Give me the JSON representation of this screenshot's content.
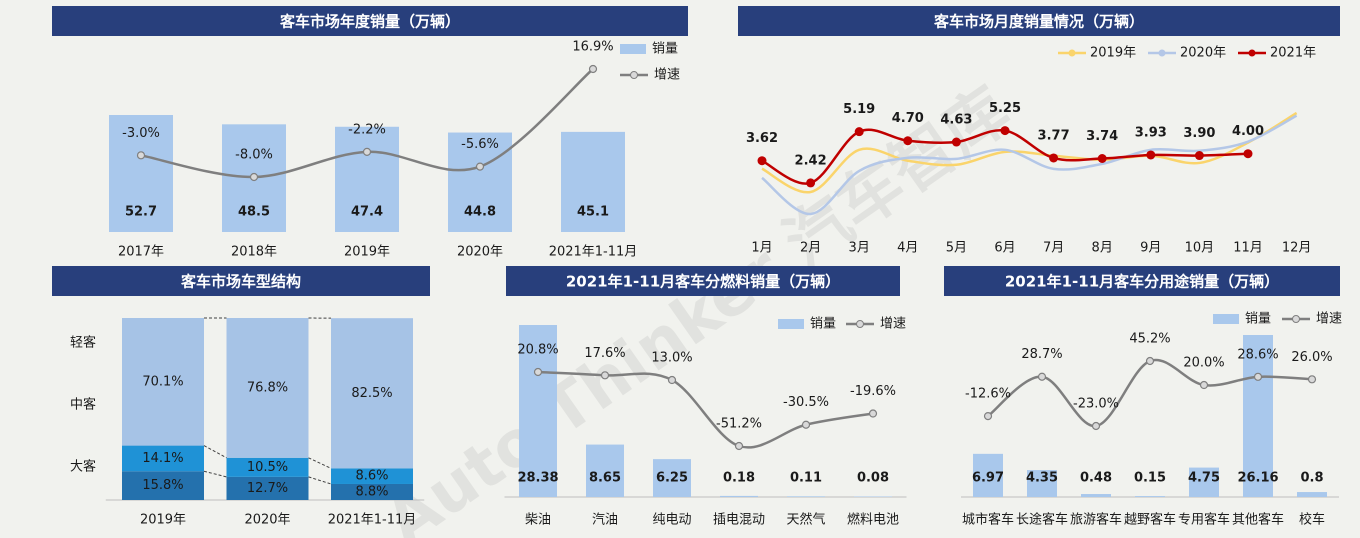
{
  "watermark": "Auto Thinker 汽车智库",
  "chart_data": [
    {
      "type": "combo",
      "title": "客车市场年度销量（万辆）",
      "categories": [
        "2017年",
        "2018年",
        "2019年",
        "2020年",
        "2021年1-11月"
      ],
      "series": [
        {
          "name": "销量",
          "type": "bar",
          "color": "#a9c8ec",
          "values": [
            52.7,
            48.5,
            47.4,
            44.8,
            45.1
          ]
        },
        {
          "name": "增速",
          "type": "line",
          "color": "#7f7f7f",
          "values": [
            -3.0,
            -8.0,
            -2.2,
            -5.6,
            16.9
          ],
          "value_labels": [
            "-3.0%",
            "-8.0%",
            "-2.2%",
            "-5.6%",
            "16.9%"
          ]
        }
      ]
    },
    {
      "type": "line",
      "title": "客车市场月度销量情况（万辆）",
      "categories": [
        "1月",
        "2月",
        "3月",
        "4月",
        "5月",
        "6月",
        "7月",
        "8月",
        "9月",
        "10月",
        "11月",
        "12月"
      ],
      "series": [
        {
          "name": "2019年",
          "color": "#fad46b",
          "values": [
            3.19,
            1.93,
            4.21,
            3.62,
            3.4,
            4.1,
            3.89,
            3.67,
            3.89,
            3.5,
            4.6,
            6.2
          ]
        },
        {
          "name": "2020年",
          "color": "#b4c7e7",
          "values": [
            2.69,
            0.74,
            3.07,
            3.78,
            3.72,
            4.21,
            3.18,
            3.45,
            4.21,
            4.16,
            4.65,
            6.06
          ]
        },
        {
          "name": "2021年",
          "color": "#c00000",
          "values": [
            3.62,
            2.42,
            5.19,
            4.7,
            4.63,
            5.25,
            3.77,
            3.74,
            3.93,
            3.9,
            4.0,
            null
          ],
          "value_labels": [
            "3.62",
            "2.42",
            "5.19",
            "4.70",
            "4.63",
            "5.25",
            "3.77",
            "3.74",
            "3.93",
            "3.90",
            "4.00",
            null
          ]
        }
      ]
    },
    {
      "type": "bar",
      "stacked": true,
      "title": "客车市场车型结构",
      "categories": [
        "2019年",
        "2020年",
        "2021年1-11月"
      ],
      "series": [
        {
          "name": "大客",
          "color": "#2471ad",
          "values": [
            15.8,
            12.7,
            8.8
          ],
          "value_labels": [
            "15.8%",
            "12.7%",
            "8.8%"
          ]
        },
        {
          "name": "中客",
          "color": "#1f92d6",
          "values": [
            14.1,
            10.5,
            8.6
          ],
          "value_labels": [
            "14.1%",
            "10.5%",
            "8.6%"
          ]
        },
        {
          "name": "轻客",
          "color": "#a6c3e6",
          "values": [
            70.1,
            76.8,
            82.5
          ],
          "value_labels": [
            "70.1%",
            "76.8%",
            "82.5%"
          ]
        }
      ]
    },
    {
      "type": "combo",
      "title": "2021年1-11月客车分燃料销量（万辆）",
      "categories": [
        "柴油",
        "汽油",
        "纯电动",
        "插电混动",
        "天然气",
        "燃料电池"
      ],
      "series": [
        {
          "name": "销量",
          "type": "bar",
          "color": "#a9c8ec",
          "values": [
            28.38,
            8.65,
            6.25,
            0.18,
            0.11,
            0.08
          ]
        },
        {
          "name": "增速",
          "type": "line",
          "color": "#7f7f7f",
          "values": [
            20.8,
            17.6,
            13.0,
            -51.2,
            -30.5,
            -19.6
          ],
          "value_labels": [
            "20.8%",
            "17.6%",
            "13.0%",
            "-51.2%",
            "-30.5%",
            "-19.6%"
          ]
        }
      ]
    },
    {
      "type": "combo",
      "title": "2021年1-11月客车分用途销量（万辆）",
      "categories": [
        "城市客车",
        "长途客车",
        "旅游客车",
        "越野客车",
        "专用客车",
        "其他客车",
        "校车"
      ],
      "series": [
        {
          "name": "销量",
          "type": "bar",
          "color": "#a9c8ec",
          "values": [
            6.97,
            4.35,
            0.48,
            0.15,
            4.75,
            26.16,
            0.8
          ]
        },
        {
          "name": "增速",
          "type": "line",
          "color": "#7f7f7f",
          "values": [
            -12.6,
            28.7,
            -23.0,
            45.2,
            20.0,
            28.6,
            26.0
          ],
          "value_labels": [
            "-12.6%",
            "28.7%",
            "-23.0%",
            "45.2%",
            "20.0%",
            "28.6%",
            "26.0%"
          ]
        }
      ]
    }
  ]
}
